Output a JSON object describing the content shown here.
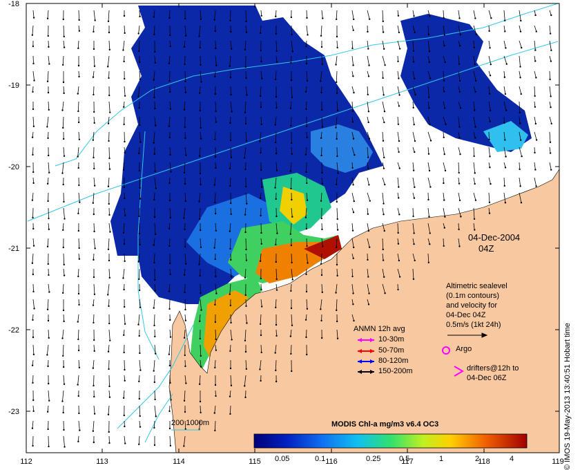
{
  "map": {
    "date": "04-Dec-2004",
    "time": "04Z",
    "credit": "© IMOS 19-May-2013 13:40:51  Hobart time",
    "lat_ticks": [
      "-18",
      "-19",
      "-20",
      "-21",
      "-22",
      "-23"
    ],
    "lon_ticks": [
      "112",
      "113",
      "114",
      "115",
      "116",
      "117",
      "118",
      "119"
    ],
    "colors": {
      "land": "#f8c8a0",
      "ocean": "#ffffff",
      "contour": "#30c8e8",
      "arrow": "#000000"
    }
  },
  "altimetry_note": {
    "line1": "Altimetric sealevel",
    "line2": "(0.1m contours)",
    "line3": "and velocity for",
    "line4": "04-Dec 04Z",
    "scale": "0.5m/s (1kt 24h)"
  },
  "anmn": {
    "title": "ANMN 12h avg",
    "items": [
      {
        "label": "10-30m",
        "color": "#ff00ff"
      },
      {
        "label": "50-70m",
        "color": "#ff0000"
      },
      {
        "label": "80-120m",
        "color": "#0000ff"
      },
      {
        "label": "150-200m",
        "color": "#000000"
      }
    ]
  },
  "argo": {
    "label": "Argo",
    "color": "#ff00ff"
  },
  "drifters": {
    "line1": "drifters@12h to",
    "line2": "04-Dec 06Z",
    "color": "#ff00ff"
  },
  "bathy_label": "200  1000m",
  "colorbar": {
    "title": "MODIS Chl-a mg/m3 v6.4 OC3",
    "ticks": [
      "0.05",
      "0.1",
      "0.25",
      "0.5",
      "1",
      "2",
      "4"
    ]
  }
}
